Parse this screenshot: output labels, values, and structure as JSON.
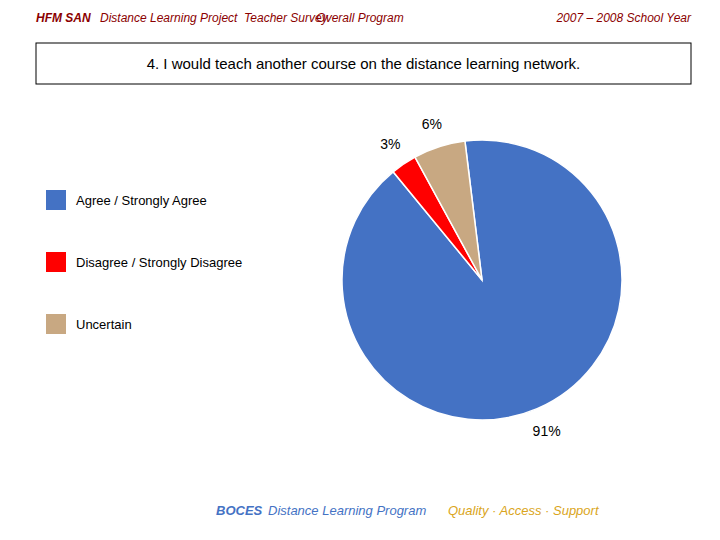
{
  "chart_data": {
    "type": "pie",
    "title": "4. I would teach another course on the distance learning network.",
    "categories": [
      "Agree / Strongly Agree",
      "Disagree / Strongly Disagree",
      "Uncertain"
    ],
    "values": [
      91,
      3,
      6
    ],
    "value_labels": [
      "91%",
      "3%",
      "6%"
    ],
    "data_labels": true,
    "colors": [
      "#4472C4",
      "#FF0000",
      "#C8A882"
    ],
    "annotations": [
      "HFM SAN",
      "Distance Learning Project  Teacher Survey",
      "Overall Program",
      "2007 – 2008 School Year",
      "BOCES",
      "Distance Learning Program",
      "Quality · Access · Support"
    ]
  }
}
